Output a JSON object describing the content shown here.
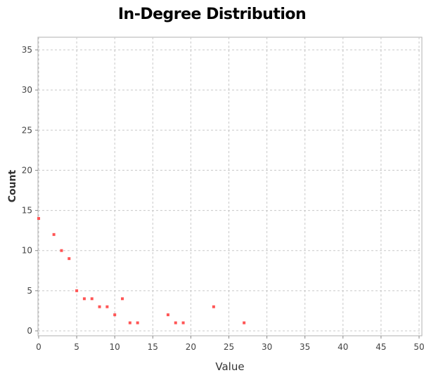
{
  "chart_data": {
    "type": "scatter",
    "title": "In-Degree Distribution",
    "xlabel": "Value",
    "ylabel": "Count",
    "xlim": [
      0,
      50
    ],
    "ylim": [
      0,
      35
    ],
    "xticks": [
      0,
      5,
      10,
      15,
      20,
      25,
      30,
      35,
      40,
      45,
      50
    ],
    "yticks": [
      0,
      5,
      10,
      15,
      20,
      25,
      30,
      35
    ],
    "grid": true,
    "point_color": "#ff5555",
    "series": [
      {
        "x": [
          0,
          2,
          3,
          4,
          5,
          6,
          7,
          8,
          9,
          10,
          11,
          12,
          13,
          17,
          18,
          19,
          23,
          27
        ],
        "y": [
          14,
          12,
          10,
          9,
          5,
          4,
          4,
          3,
          3,
          2,
          4,
          1,
          1,
          2,
          1,
          1,
          3,
          1
        ]
      }
    ]
  }
}
